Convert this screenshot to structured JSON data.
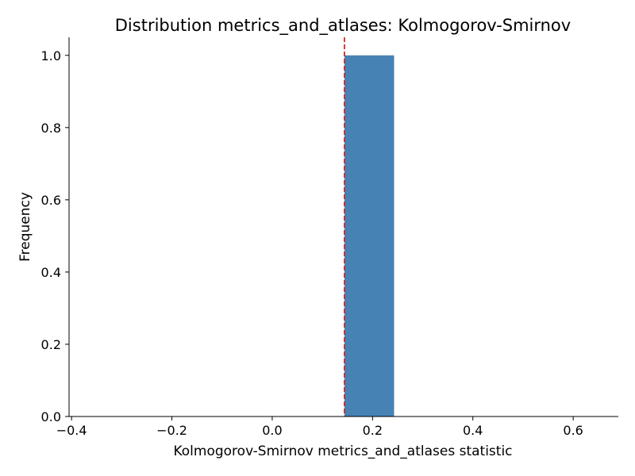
{
  "chart_data": {
    "type": "bar",
    "title": "Distribution metrics_and_atlases: Kolmogorov-Smirnov",
    "xlabel": "Kolmogorov-Smirnov metrics_and_atlases statistic",
    "ylabel": "Frequency",
    "xlim": [
      -0.405,
      0.69
    ],
    "ylim": [
      0,
      1.05
    ],
    "x_ticks": [
      {
        "value": -0.4,
        "label": "−0.4"
      },
      {
        "value": -0.2,
        "label": "−0.2"
      },
      {
        "value": 0.0,
        "label": "0.0"
      },
      {
        "value": 0.2,
        "label": "0.2"
      },
      {
        "value": 0.4,
        "label": "0.4"
      },
      {
        "value": 0.6,
        "label": "0.6"
      }
    ],
    "y_ticks": [
      {
        "value": 0.0,
        "label": "0.0"
      },
      {
        "value": 0.2,
        "label": "0.2"
      },
      {
        "value": 0.4,
        "label": "0.4"
      },
      {
        "value": 0.6,
        "label": "0.6"
      },
      {
        "value": 0.8,
        "label": "0.8"
      },
      {
        "value": 1.0,
        "label": "1.0"
      }
    ],
    "bins": [
      {
        "x0": 0.144,
        "x1": 0.243,
        "count": 1.0
      }
    ],
    "reference_line": {
      "x": 0.144,
      "style": "dashed",
      "color": "#d62728"
    },
    "bar_color": "#4682b4",
    "grid": false,
    "legend": "none"
  }
}
